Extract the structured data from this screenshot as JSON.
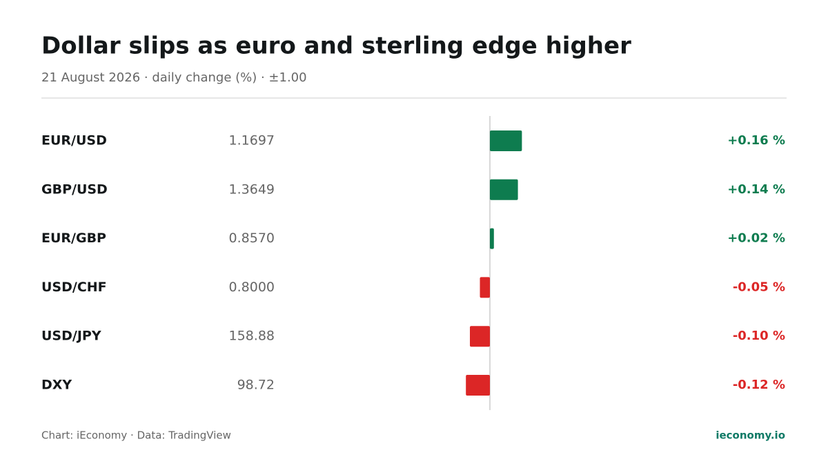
{
  "chart_data": {
    "type": "bar",
    "orientation": "horizontal",
    "title": "Dollar slips as euro and sterling edge higher",
    "subtitle": "21 August 2026 · daily change (%) · ±1.00",
    "categories": [
      "EUR/USD",
      "GBP/USD",
      "EUR/GBP",
      "USD/CHF",
      "USD/JPY",
      "DXY"
    ],
    "rates": [
      "1.1697",
      "1.3649",
      "0.8570",
      "0.8000",
      "158.88",
      "98.72"
    ],
    "values": [
      0.16,
      0.14,
      0.02,
      -0.05,
      -0.1,
      -0.12
    ],
    "value_labels": [
      "+0.16 %",
      "+0.14 %",
      "+0.02 %",
      "-0.05 %",
      "-0.10 %",
      "-0.12 %"
    ],
    "xlim": [
      -1,
      1
    ],
    "colors": {
      "positive": "#0e7c4f",
      "negative": "#dc2626"
    },
    "source": "Chart: iEconomy · Data: TradingView",
    "brand": "ieconomy.io"
  }
}
